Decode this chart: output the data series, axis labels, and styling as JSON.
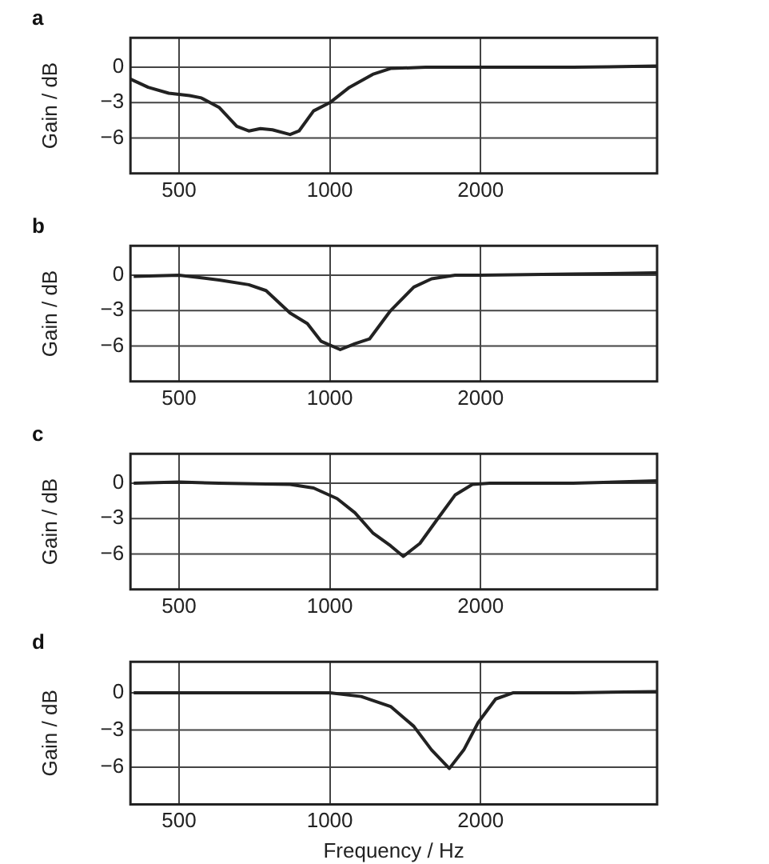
{
  "chart_data": [
    {
      "type": "line",
      "title": "a",
      "ylabel": "Gain / dB",
      "log": "x",
      "grid": true,
      "legend": false,
      "marker": "none",
      "line_style": "solid",
      "xlim": [
        400,
        4500
      ],
      "ylim": [
        -9,
        2.5
      ],
      "xticks": [
        500,
        1000,
        2000
      ],
      "yticks": [
        0,
        -3,
        -6
      ],
      "series": [
        {
          "color": "#222222",
          "x": [
            400,
            434,
            477,
            525,
            554,
            601,
            652,
            689,
            727,
            768,
            833,
            868,
            928,
            1000,
            1094,
            1218,
            1322,
            1553,
            2040,
            3060,
            4500
          ],
          "values": [
            -1.0,
            -1.7,
            -2.2,
            -2.4,
            -2.6,
            -3.4,
            -5.0,
            -5.4,
            -5.2,
            -5.3,
            -5.7,
            -5.4,
            -3.7,
            -3.0,
            -1.7,
            -0.6,
            -0.1,
            0,
            0,
            0,
            0.1
          ]
        }
      ]
    },
    {
      "type": "line",
      "title": "b",
      "ylabel": "Gain / dB",
      "log": "x",
      "grid": true,
      "legend": false,
      "marker": "none",
      "line_style": "solid",
      "xlim": [
        400,
        4500
      ],
      "ylim": [
        -9,
        2.5
      ],
      "xticks": [
        500,
        1000,
        2000
      ],
      "yticks": [
        0,
        -3,
        -6
      ],
      "series": [
        {
          "color": "#222222",
          "x": [
            406,
            500,
            601,
            689,
            746,
            833,
            902,
            961,
            1049,
            1122,
            1200,
            1322,
            1471,
            1596,
            1778,
            2000,
            3060,
            4500
          ],
          "values": [
            -0.1,
            0,
            -0.4,
            -0.8,
            -1.3,
            -3.2,
            -4.1,
            -5.6,
            -6.3,
            -5.8,
            -5.4,
            -3.0,
            -1.0,
            -0.3,
            0,
            0,
            0.1,
            0.2
          ]
        }
      ]
    },
    {
      "type": "line",
      "title": "c",
      "ylabel": "Gain / dB",
      "log": "x",
      "grid": true,
      "legend": false,
      "marker": "none",
      "line_style": "solid",
      "xlim": [
        400,
        4500
      ],
      "ylim": [
        -9,
        2.5
      ],
      "xticks": [
        500,
        1000,
        2000
      ],
      "yticks": [
        0,
        -3,
        -6
      ],
      "series": [
        {
          "color": "#222222",
          "x": [
            406,
            500,
            601,
            833,
            928,
            1034,
            1122,
            1218,
            1322,
            1402,
            1513,
            1636,
            1778,
            1926,
            2085,
            3060,
            4500
          ],
          "values": [
            0,
            0.1,
            0,
            -0.1,
            -0.4,
            -1.3,
            -2.5,
            -4.2,
            -5.3,
            -6.2,
            -5.1,
            -3.1,
            -1.0,
            -0.1,
            0,
            0,
            0.2
          ]
        }
      ]
    },
    {
      "type": "line",
      "title": "d",
      "xlabel": "Frequency / Hz",
      "ylabel": "Gain / dB",
      "log": "x",
      "grid": true,
      "legend": false,
      "marker": "none",
      "line_style": "solid",
      "xlim": [
        400,
        4500
      ],
      "ylim": [
        -9,
        2.5
      ],
      "xticks": [
        500,
        1000,
        2000
      ],
      "yticks": [
        0,
        -3,
        -6
      ],
      "series": [
        {
          "color": "#222222",
          "x": [
            406,
            500,
            601,
            1000,
            1155,
            1322,
            1471,
            1596,
            1732,
            1851,
            1977,
            2143,
            2325,
            3060,
            4500
          ],
          "values": [
            0,
            0,
            0,
            0,
            -0.3,
            -1.1,
            -2.7,
            -4.6,
            -6.1,
            -4.6,
            -2.4,
            -0.5,
            0,
            0,
            0.1
          ]
        }
      ]
    }
  ]
}
